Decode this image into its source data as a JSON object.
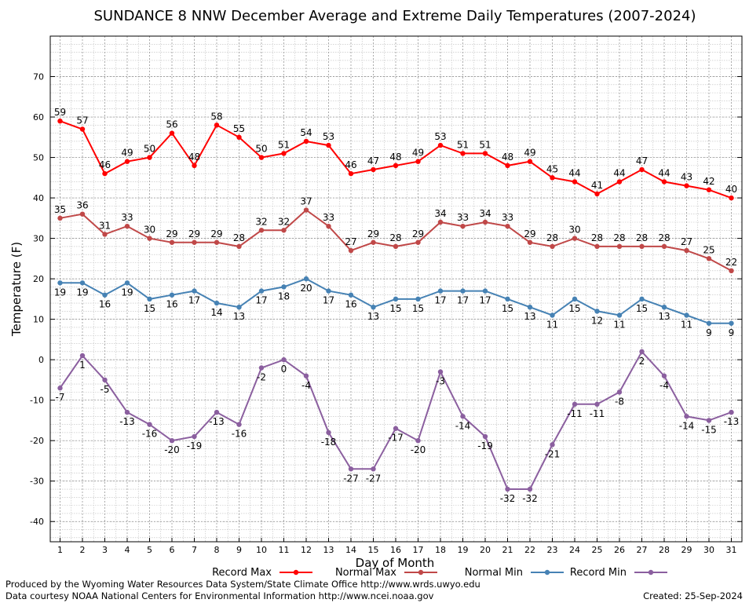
{
  "chart_data": {
    "type": "line",
    "title": "SUNDANCE 8 NNW December Average and Extreme Daily Temperatures (2007-2024)",
    "xlabel": "Day of Month",
    "ylabel": "Temperature (F)",
    "ylim": [
      -45,
      80
    ],
    "yticks": [
      -40,
      -30,
      -20,
      -10,
      0,
      10,
      20,
      30,
      40,
      50,
      60,
      70
    ],
    "x": [
      1,
      2,
      3,
      4,
      5,
      6,
      7,
      8,
      9,
      10,
      11,
      12,
      13,
      14,
      15,
      16,
      17,
      18,
      19,
      20,
      21,
      22,
      23,
      24,
      25,
      26,
      27,
      28,
      29,
      30,
      31
    ],
    "grid": true,
    "legend_position": "bottom",
    "series": [
      {
        "name": "Record Max",
        "color": "#ff0000",
        "label_position": "above",
        "values": [
          59,
          57,
          46,
          49,
          50,
          56,
          48,
          58,
          55,
          50,
          51,
          54,
          53,
          46,
          47,
          48,
          49,
          53,
          51,
          51,
          48,
          49,
          45,
          44,
          41,
          44,
          47,
          44,
          43,
          42,
          40
        ]
      },
      {
        "name": "Normal Max",
        "color": "#c04848",
        "label_position": "above",
        "values": [
          35,
          36,
          31,
          33,
          30,
          29,
          29,
          29,
          28,
          32,
          32,
          37,
          33,
          27,
          29,
          28,
          29,
          34,
          33,
          34,
          33,
          29,
          28,
          30,
          28,
          28,
          28,
          28,
          27,
          25,
          22
        ]
      },
      {
        "name": "Normal Min",
        "color": "#4682b4",
        "label_position": "below",
        "values": [
          19,
          19,
          16,
          19,
          15,
          16,
          17,
          14,
          13,
          17,
          18,
          20,
          17,
          16,
          13,
          15,
          15,
          17,
          17,
          17,
          15,
          13,
          11,
          15,
          12,
          11,
          15,
          13,
          11,
          9,
          9
        ]
      },
      {
        "name": "Record Min",
        "color": "#8b5f9f",
        "label_position": "below",
        "values": [
          -7,
          1,
          -5,
          -13,
          -16,
          -20,
          -19,
          -13,
          -16,
          -2,
          0,
          -4,
          -18,
          -27,
          -27,
          -17,
          -20,
          -3,
          -14,
          -19,
          -32,
          -32,
          -21,
          -11,
          -11,
          -8,
          2,
          -4,
          -14,
          -15,
          -13
        ]
      }
    ]
  },
  "footer": {
    "produced_by": "Produced by the Wyoming Water Resources Data System/State Climate Office http://www.wrds.uwyo.edu",
    "data_courtesy": "Data courtesy NOAA National Centers for Environmental Information http://www.ncei.noaa.gov",
    "created": "Created:  25-Sep-2024"
  }
}
